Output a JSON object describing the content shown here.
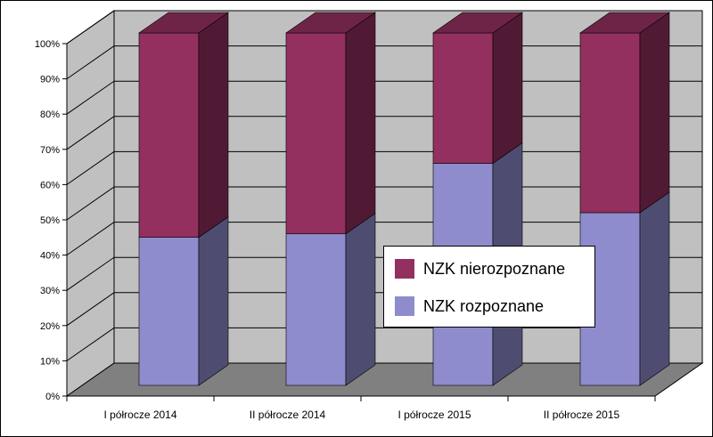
{
  "chart_data": {
    "type": "bar",
    "stacked": true,
    "three_d": true,
    "categories": [
      "I półrocze 2014",
      "II półrocze 2014",
      "I półrocze 2015",
      "II półrocze 2015"
    ],
    "series": [
      {
        "name": "NZK rozpoznane",
        "values": [
          42,
          43,
          63,
          49
        ],
        "color": "#8e8ccd"
      },
      {
        "name": "NZK nierozpoznane",
        "values": [
          58,
          57,
          37,
          51
        ],
        "color": "#93305f"
      }
    ],
    "y_ticks": [
      "0%",
      "10%",
      "20%",
      "30%",
      "40%",
      "50%",
      "60%",
      "70%",
      "80%",
      "90%",
      "100%"
    ],
    "ylim": [
      0,
      100
    ],
    "grid": true,
    "legend_position": "center-right",
    "colors": {
      "wall": "#c0c0c0",
      "floor": "#808080",
      "grid": "#000000"
    }
  },
  "legend": {
    "items": [
      {
        "label": "NZK nierozpoznane",
        "color": "#93305f"
      },
      {
        "label": "NZK rozpoznane",
        "color": "#8e8ccd"
      }
    ]
  }
}
